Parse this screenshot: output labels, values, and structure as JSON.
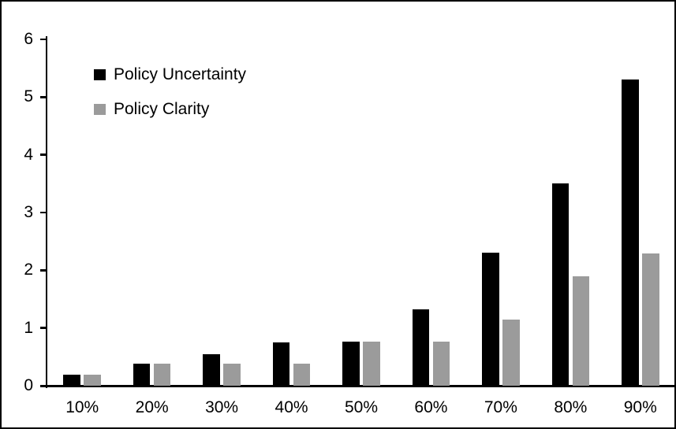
{
  "chart_data": {
    "type": "bar",
    "title": "",
    "xlabel": "",
    "ylabel": "",
    "categories": [
      "10%",
      "20%",
      "30%",
      "40%",
      "50%",
      "60%",
      "70%",
      "80%",
      "90%"
    ],
    "series": [
      {
        "name": "Policy Uncertainty",
        "color": "#000000",
        "values": [
          0.19,
          0.38,
          0.55,
          0.75,
          0.77,
          1.32,
          2.3,
          3.5,
          5.3
        ]
      },
      {
        "name": "Policy Clarity",
        "color": "#9b9b9b",
        "values": [
          0.19,
          0.38,
          0.38,
          0.38,
          0.76,
          0.76,
          1.15,
          1.9,
          2.29
        ]
      }
    ],
    "ylim": [
      0,
      6
    ],
    "yticks": [
      0,
      1,
      2,
      3,
      4,
      5,
      6
    ],
    "grid": false,
    "legend_position": "top-left",
    "axis_color": "#000000",
    "background_color": "#ffffff",
    "border_color": "#000000"
  }
}
